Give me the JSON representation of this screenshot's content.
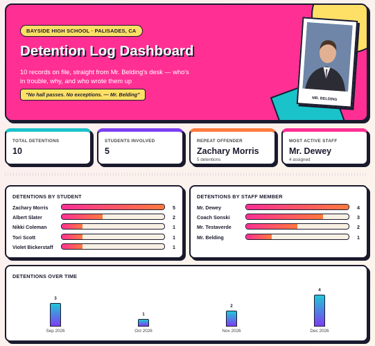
{
  "header": {
    "badge": "BAYSIDE HIGH SCHOOL · PALISADES, CA",
    "title": "Detention Log Dashboard",
    "subtitle": "10 records on file, straight from Mr. Belding's desk — who's in trouble, why, and who wrote them up",
    "quote": "\"No hall passes. No exceptions. — Mr. Belding\"",
    "photo_caption": "MR. BELDING"
  },
  "stats": [
    {
      "label": "TOTAL DETENTIONS",
      "value": 10
    },
    {
      "label": "STUDENTS INVOLVED",
      "value": 5
    },
    {
      "label": "REPEAT OFFENDER",
      "value": "Zachary Morris",
      "note": "5 detentions"
    },
    {
      "label": "MOST ACTIVE STAFF",
      "value": "Mr. Dewey",
      "note": "4 assigned"
    }
  ],
  "by_student": {
    "title": "DETENTIONS BY STUDENT",
    "rows": [
      {
        "name": "Zachary Morris",
        "value": 5
      },
      {
        "name": "Albert Slater",
        "value": 2
      },
      {
        "name": "Nikki Coleman",
        "value": 1
      },
      {
        "name": "Tori Scott",
        "value": 1
      },
      {
        "name": "Violet Bickerstaff",
        "value": 1
      }
    ]
  },
  "by_staff": {
    "title": "DETENTIONS BY STAFF MEMBER",
    "rows": [
      {
        "name": "Mr. Dewey",
        "value": 4
      },
      {
        "name": "Coach Sonski",
        "value": 3
      },
      {
        "name": "Mr. Testaverde",
        "value": 2
      },
      {
        "name": "Mr. Belding",
        "value": 1
      }
    ]
  },
  "over_time": {
    "title": "DETENTIONS OVER TIME",
    "categories": [
      "Sep 2026",
      "Oct 2026",
      "Nov 2026",
      "Dec 2026"
    ],
    "values": [
      3,
      1,
      2,
      4
    ]
  }
}
